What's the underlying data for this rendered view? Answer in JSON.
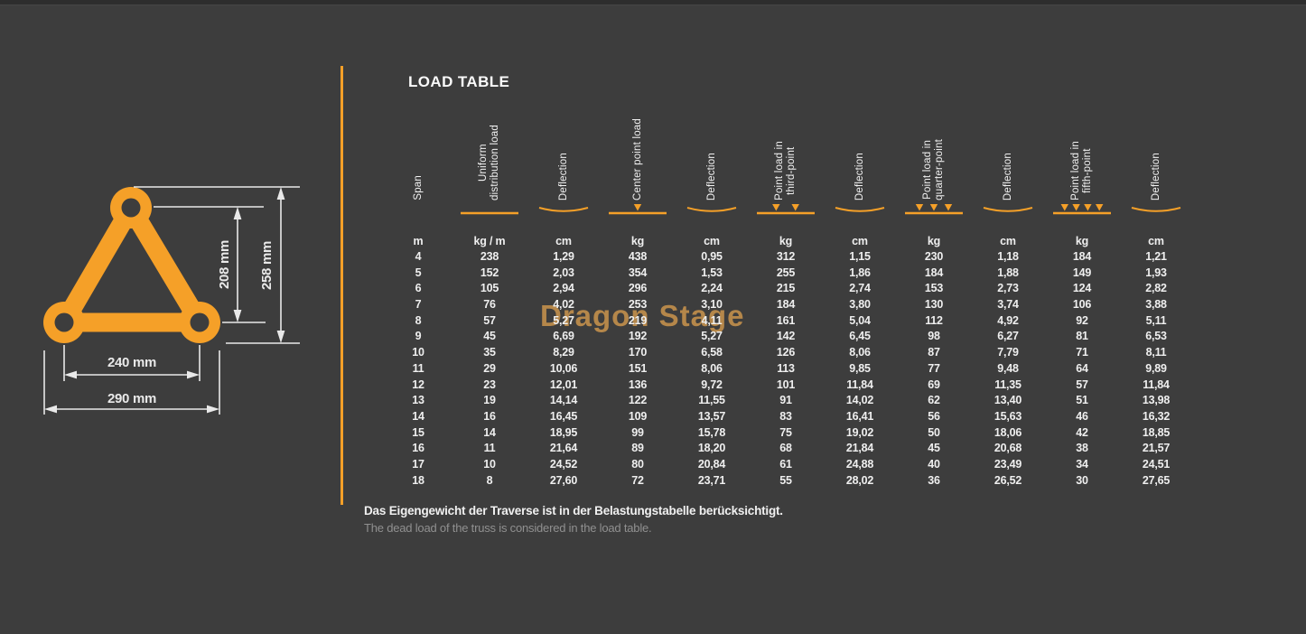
{
  "page": {
    "title": "LOAD TABLE",
    "watermark": "Dragon Stage"
  },
  "colors": {
    "background": "#3D3D3D",
    "accent": "#F5A028",
    "watermark": "#B5874A",
    "text": "#EFEFEF",
    "muted": "#909090"
  },
  "diagram": {
    "labels": {
      "center_height": "208 mm",
      "overall_height": "258 mm",
      "center_width": "240 mm",
      "overall_width": "290 mm"
    }
  },
  "table": {
    "columns": [
      {
        "id": "span",
        "label": "Span",
        "unit": "m",
        "symbol": "none"
      },
      {
        "id": "uniform-distribution-load",
        "label": "Uniform\ndistribution load",
        "unit": "kg / m",
        "symbol": "line"
      },
      {
        "id": "deflection-1",
        "label": "Deflection",
        "unit": "cm",
        "symbol": "curve"
      },
      {
        "id": "center-point-load",
        "label": "Center point load",
        "unit": "kg",
        "symbol": "load-1"
      },
      {
        "id": "deflection-2",
        "label": "Deflection",
        "unit": "cm",
        "symbol": "curve"
      },
      {
        "id": "point-load-third-point",
        "label": "Point load in\nthird-point",
        "unit": "kg",
        "symbol": "load-2"
      },
      {
        "id": "deflection-3",
        "label": "Deflection",
        "unit": "cm",
        "symbol": "curve"
      },
      {
        "id": "point-load-quarter-point",
        "label": "Point load in\nquarter-point",
        "unit": "kg",
        "symbol": "load-3"
      },
      {
        "id": "deflection-4",
        "label": "Deflection",
        "unit": "cm",
        "symbol": "curve"
      },
      {
        "id": "point-load-fifth-point",
        "label": "Point load in\nfifth-point",
        "unit": "kg",
        "symbol": "load-4"
      },
      {
        "id": "deflection-5",
        "label": "Deflection",
        "unit": "cm",
        "symbol": "curve"
      }
    ],
    "rows": [
      [
        "4",
        "238",
        "1,29",
        "438",
        "0,95",
        "312",
        "1,15",
        "230",
        "1,18",
        "184",
        "1,21"
      ],
      [
        "5",
        "152",
        "2,03",
        "354",
        "1,53",
        "255",
        "1,86",
        "184",
        "1,88",
        "149",
        "1,93"
      ],
      [
        "6",
        "105",
        "2,94",
        "296",
        "2,24",
        "215",
        "2,74",
        "153",
        "2,73",
        "124",
        "2,82"
      ],
      [
        "7",
        "76",
        "4,02",
        "253",
        "3,10",
        "184",
        "3,80",
        "130",
        "3,74",
        "106",
        "3,88"
      ],
      [
        "8",
        "57",
        "5,27",
        "219",
        "4,11",
        "161",
        "5,04",
        "112",
        "4,92",
        "92",
        "5,11"
      ],
      [
        "9",
        "45",
        "6,69",
        "192",
        "5,27",
        "142",
        "6,45",
        "98",
        "6,27",
        "81",
        "6,53"
      ],
      [
        "10",
        "35",
        "8,29",
        "170",
        "6,58",
        "126",
        "8,06",
        "87",
        "7,79",
        "71",
        "8,11"
      ],
      [
        "11",
        "29",
        "10,06",
        "151",
        "8,06",
        "113",
        "9,85",
        "77",
        "9,48",
        "64",
        "9,89"
      ],
      [
        "12",
        "23",
        "12,01",
        "136",
        "9,72",
        "101",
        "11,84",
        "69",
        "11,35",
        "57",
        "11,84"
      ],
      [
        "13",
        "19",
        "14,14",
        "122",
        "11,55",
        "91",
        "14,02",
        "62",
        "13,40",
        "51",
        "13,98"
      ],
      [
        "14",
        "16",
        "16,45",
        "109",
        "13,57",
        "83",
        "16,41",
        "56",
        "15,63",
        "46",
        "16,32"
      ],
      [
        "15",
        "14",
        "18,95",
        "99",
        "15,78",
        "75",
        "19,02",
        "50",
        "18,06",
        "42",
        "18,85"
      ],
      [
        "16",
        "11",
        "21,64",
        "89",
        "18,20",
        "68",
        "21,84",
        "45",
        "20,68",
        "38",
        "21,57"
      ],
      [
        "17",
        "10",
        "24,52",
        "80",
        "20,84",
        "61",
        "24,88",
        "40",
        "23,49",
        "34",
        "24,51"
      ],
      [
        "18",
        "8",
        "27,60",
        "72",
        "23,71",
        "55",
        "28,02",
        "36",
        "26,52",
        "30",
        "27,65"
      ]
    ]
  },
  "footnotes": {
    "german": "Das Eigengewicht der Traverse ist in der Belastungstabelle berücksichtigt.",
    "english": "The dead load of the truss is considered in the load table."
  }
}
